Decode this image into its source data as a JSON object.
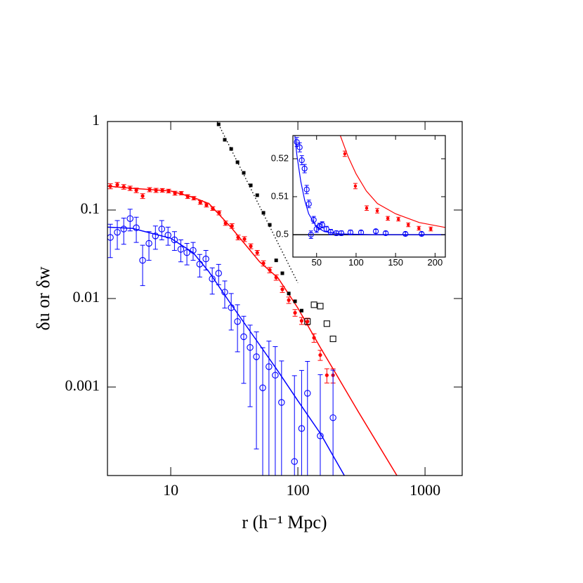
{
  "chart_data": [
    {
      "type": "scatter",
      "xlabel": "r (h⁻¹ Mpc)",
      "ylabel": "δu or δw",
      "log_x": true,
      "log_y": true,
      "xlim": [
        3.18,
        1960
      ],
      "ylim": [
        0.0001,
        1
      ],
      "xticks": [
        10,
        100,
        1000
      ],
      "yticks": [
        0.001,
        0.01,
        0.1,
        1
      ],
      "series": [
        {
          "marker": "line",
          "color": "#ff0000",
          "x": [
            3.2,
            5,
            10,
            15,
            20,
            30,
            50,
            70,
            100,
            150,
            200,
            300,
            601
          ],
          "values": [
            0.186,
            0.176,
            0.164,
            0.139,
            0.118,
            0.063,
            0.026,
            0.017,
            0.0078,
            0.0028,
            0.0014,
            0.00052,
            0.0001
          ]
        },
        {
          "marker": "line",
          "color": "#0000ff",
          "x": [
            3.2,
            5,
            10,
            15,
            20,
            30,
            50,
            70,
            100,
            150,
            232
          ],
          "values": [
            0.064,
            0.062,
            0.048,
            0.033,
            0.02,
            0.0085,
            0.003,
            0.0015,
            0.0007,
            0.0003,
            0.0001
          ]
        },
        {
          "marker": "dotted",
          "color": "#000000",
          "x": [
            23.2,
            100
          ],
          "values": [
            1,
            0.015
          ]
        },
        {
          "marker": "filled-circle",
          "color": "#ff0000",
          "x": [
            3.35,
            3.8,
            4.27,
            4.79,
            5.36,
            6.01,
            6.82,
            7.66,
            8.59,
            9.62,
            10.8,
            12.1,
            13.6,
            15.2,
            17.1,
            19.1,
            21.4,
            24.0,
            27.0,
            30.3,
            33.9,
            38.0,
            42.6,
            47.9,
            53.6,
            60.1,
            67.5,
            75.5,
            84.8,
            95,
            107,
            119,
            134,
            150,
            169,
            189
          ],
          "values": [
            0.186,
            0.193,
            0.183,
            0.176,
            0.167,
            0.144,
            0.17,
            0.167,
            0.167,
            0.164,
            0.155,
            0.155,
            0.142,
            0.136,
            0.122,
            0.114,
            0.104,
            0.093,
            0.071,
            0.066,
            0.049,
            0.047,
            0.039,
            0.033,
            0.025,
            0.021,
            0.0173,
            0.0127,
            0.0096,
            0.0069,
            0.0056,
            0.0055,
            0.0036,
            0.0023,
            0.00136,
            0.00136
          ],
          "errors": [
            0.012,
            0.012,
            0.011,
            0.01,
            0.01,
            0.009,
            0.009,
            0.009,
            0.008,
            0.008,
            0.008,
            0.007,
            0.007,
            0.006,
            0.006,
            0.006,
            0.005,
            0.005,
            0.004,
            0.004,
            0.003,
            0.003,
            0.0025,
            0.002,
            0.0017,
            0.0015,
            0.0012,
            0.001,
            0.0008,
            0.0006,
            0.0005,
            0.0005,
            0.0004,
            0.0003,
            0.00025,
            0.00025
          ]
        },
        {
          "marker": "open-circle",
          "color": "#0000ff",
          "x": [
            3.35,
            3.8,
            4.27,
            4.79,
            5.36,
            6.01,
            6.74,
            7.58,
            8.5,
            9.52,
            10.7,
            12.0,
            13.4,
            15.0,
            16.9,
            18.9,
            21.2,
            23.8,
            26.6,
            29.9,
            33.5,
            37.5,
            42.1,
            47.2,
            52.9,
            59.2,
            66.4,
            74.4,
            94,
            107,
            119,
            150,
            189
          ],
          "values": [
            0.049,
            0.056,
            0.061,
            0.08,
            0.063,
            0.027,
            0.042,
            0.051,
            0.061,
            0.052,
            0.046,
            0.036,
            0.033,
            0.035,
            0.0245,
            0.028,
            0.0167,
            0.0193,
            0.0118,
            0.0079,
            0.0055,
            0.0037,
            0.0028,
            0.0022,
            0.00098,
            0.0017,
            0.00136,
            0.00067,
            0.000144,
            0.00034,
            0.00085,
            0.00028,
            0.00045
          ],
          "errors": [
            0.02,
            0.02,
            0.02,
            0.022,
            0.02,
            0.013,
            0.015,
            0.015,
            0.015,
            0.012,
            0.011,
            0.01,
            0.009,
            0.008,
            0.007,
            0.007,
            0.0055,
            0.005,
            0.004,
            0.0035,
            0.003,
            0.0026,
            0.0022,
            0.002,
            0.0018,
            0.0016,
            0.0015,
            0.0013,
            0.0012,
            0.0012,
            0.0011,
            0.0011,
            0.0011
          ]
        },
        {
          "marker": "filled-square",
          "color": "#000000",
          "x": [
            23.8,
            26.6,
            29.9,
            33.5,
            37.5,
            42.6,
            47.9,
            53.6,
            60.1,
            67.5,
            75.5,
            84.8,
            95,
            107
          ],
          "values": [
            0.929,
            0.622,
            0.49,
            0.347,
            0.263,
            0.19,
            0.147,
            0.093,
            0.068,
            0.027,
            0.0193,
            0.0114,
            0.0093,
            0.0073
          ]
        },
        {
          "marker": "open-square",
          "color": "#000000",
          "x": [
            119,
            134,
            150,
            169,
            189
          ],
          "values": [
            0.0055,
            0.0085,
            0.0082,
            0.0052,
            0.0035
          ]
        }
      ]
    },
    {
      "type": "scatter",
      "log_x": false,
      "log_y": false,
      "xlim": [
        20,
        213
      ],
      "ylim": [
        0.4941,
        0.5261
      ],
      "xticks": [
        50,
        100,
        150,
        200
      ],
      "yticks": [
        0.5,
        0.51,
        0.52
      ],
      "hline": 0.5,
      "series": [
        {
          "marker": "line",
          "color": "#ff0000",
          "x": [
            80,
            90,
            100,
            113,
            127,
            150,
            180,
            213
          ],
          "values": [
            0.5261,
            0.5205,
            0.516,
            0.5115,
            0.5082,
            0.5055,
            0.5032,
            0.5019
          ]
        },
        {
          "marker": "line",
          "color": "#0000ff",
          "x": [
            22.5,
            25,
            30,
            35,
            40,
            50,
            60,
            80,
            120,
            213
          ],
          "values": [
            0.5261,
            0.521,
            0.514,
            0.509,
            0.5055,
            0.502,
            0.5008,
            0.5002,
            0.5,
            0.5
          ]
        },
        {
          "marker": "filled-circle",
          "color": "#ff0000",
          "x": [
            85.7,
            99.1,
            113.4,
            126.8,
            140.2,
            153.6,
            166.1,
            179.5,
            194.6
          ],
          "values": [
            0.5213,
            0.5128,
            0.507,
            0.5063,
            0.5043,
            0.5041,
            0.5026,
            0.5017,
            0.5015
          ],
          "errors": [
            0.0007,
            0.0007,
            0.0006,
            0.0006,
            0.0005,
            0.0005,
            0.0005,
            0.0005,
            0.0005
          ]
        },
        {
          "marker": "open-circle",
          "color": "#0000ff",
          "x": [
            25.0,
            28.6,
            31.3,
            34.8,
            37.5,
            40.2,
            42.9,
            46.4,
            50,
            53.6,
            57.1,
            62.5,
            67.9,
            75,
            81.3,
            92.9,
            106.3,
            125,
            137.5,
            162.5,
            183
          ],
          "values": [
            0.5244,
            0.523,
            0.5196,
            0.5174,
            0.5119,
            0.5081,
            0.5,
            0.5039,
            0.5015,
            0.5022,
            0.5026,
            0.5015,
            0.5007,
            0.5004,
            0.5004,
            0.5006,
            0.5006,
            0.5009,
            0.5004,
            0.5002,
            0.5002
          ],
          "errors": [
            0.0012,
            0.0012,
            0.0012,
            0.0011,
            0.0011,
            0.001,
            0.001,
            0.0009,
            0.0009,
            0.0008,
            0.0008,
            0.0007,
            0.0007,
            0.0006,
            0.0006,
            0.0006,
            0.0005,
            0.0005,
            0.0005,
            0.0005,
            0.0005
          ]
        }
      ]
    }
  ]
}
